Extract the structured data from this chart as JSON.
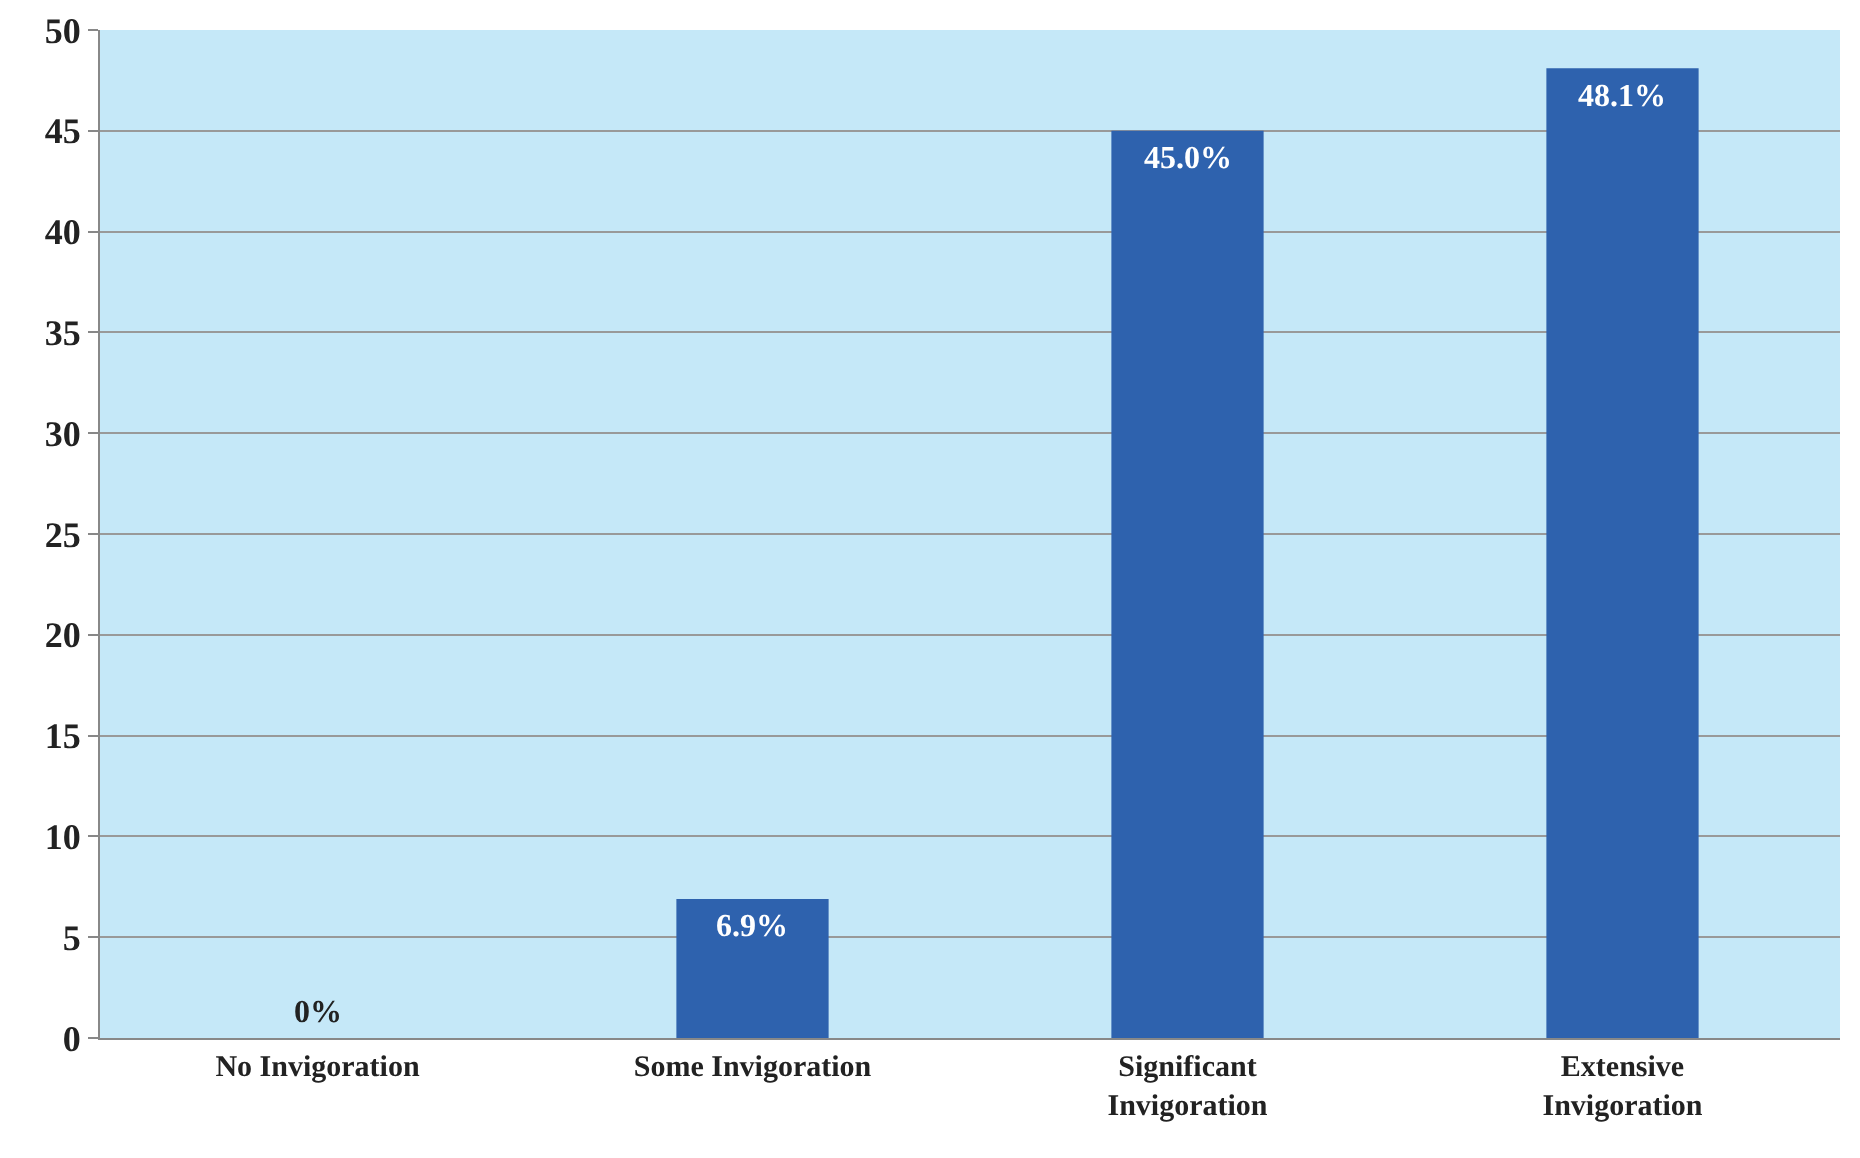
{
  "chart_data": {
    "type": "bar",
    "categories": [
      "No Invigoration",
      "Some Invigoration",
      "Significant Invigoration",
      "Extensive Invigoration"
    ],
    "values": [
      0,
      6.9,
      45.0,
      48.1
    ],
    "value_labels": [
      "0%",
      "6.9%",
      "45.0%",
      "48.1%"
    ],
    "color": "#2e62ae",
    "ylim": [
      0,
      50
    ],
    "yticks": [
      0,
      5,
      10,
      15,
      20,
      25,
      30,
      35,
      40,
      45,
      50
    ],
    "grid": "y"
  }
}
